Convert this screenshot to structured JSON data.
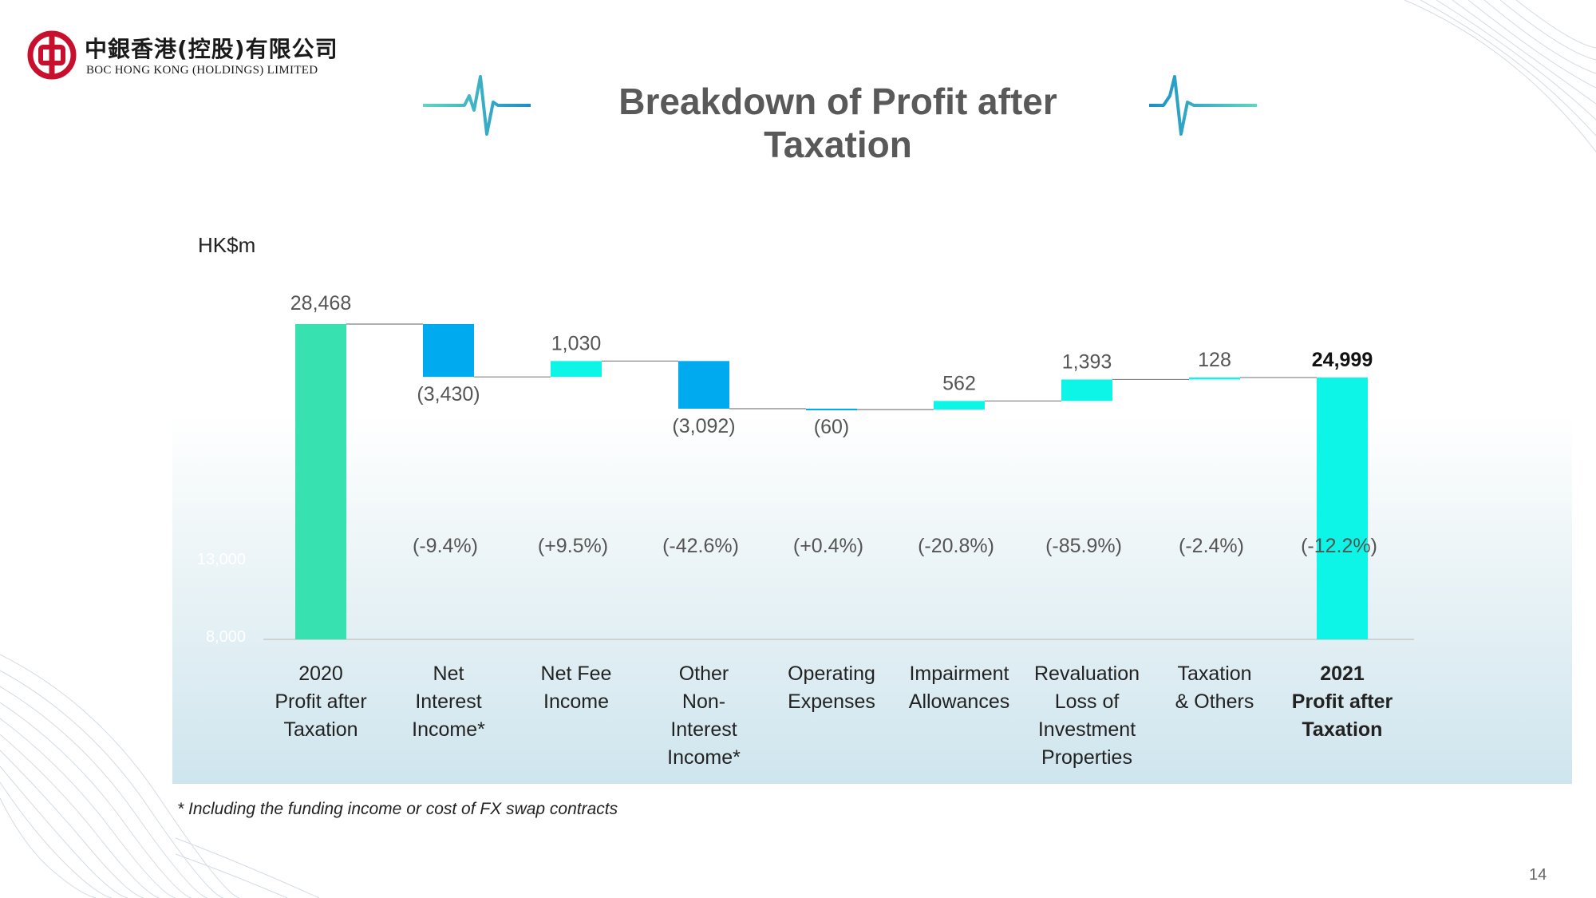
{
  "header": {
    "logo_cn": "中銀香港(控股)有限公司",
    "logo_en": "BOC HONG KONG (HOLDINGS) LIMITED",
    "title": "Breakdown of Profit after Taxation"
  },
  "unit_label": "HK$m",
  "footnote": "* Including the funding income or cost of FX swap contracts",
  "page_number": "14",
  "colors": {
    "start_bar": "#37e1b0",
    "end_bar": "#0cf5e6",
    "decrease": "#00aaee",
    "increase": "#0cf5e6",
    "brand_red": "#c8102e",
    "accent_teal": "#3cc8c0"
  },
  "chart_data": {
    "type": "waterfall",
    "ylim": [
      8000,
      30000
    ],
    "yticks_faint": [
      "13,000",
      "8,000"
    ],
    "categories": [
      [
        "2020",
        "Profit after",
        "Taxation"
      ],
      [
        "Net",
        "Interest",
        "Income*"
      ],
      [
        "Net Fee",
        "Income"
      ],
      [
        "Other",
        "Non-",
        "Interest",
        "Income*"
      ],
      [
        "Operating",
        "Expenses"
      ],
      [
        "Impairment",
        "Allowances"
      ],
      [
        "Revaluation",
        "Loss of",
        "Investment",
        "Properties"
      ],
      [
        "Taxation",
        "& Others"
      ],
      [
        "2021",
        "Profit after",
        "Taxation"
      ]
    ],
    "steps": [
      {
        "kind": "total",
        "value": 28468,
        "label": "28,468",
        "change": ""
      },
      {
        "kind": "delta",
        "value": -3430,
        "label": "(3,430)",
        "change": "(-9.4%)"
      },
      {
        "kind": "delta",
        "value": 1030,
        "label": "1,030",
        "change": "(+9.5%)"
      },
      {
        "kind": "delta",
        "value": -3092,
        "label": "(3,092)",
        "change": "(-42.6%)"
      },
      {
        "kind": "delta",
        "value": -60,
        "label": "(60)",
        "change": "(+0.4%)"
      },
      {
        "kind": "delta",
        "value": 562,
        "label": "562",
        "change": "(-20.8%)"
      },
      {
        "kind": "delta",
        "value": 1393,
        "label": "1,393",
        "change": "(-85.9%)"
      },
      {
        "kind": "delta",
        "value": 128,
        "label": "128",
        "change": "(-2.4%)"
      },
      {
        "kind": "total",
        "value": 24999,
        "label": "24,999",
        "change": "(-12.2%)"
      }
    ]
  }
}
